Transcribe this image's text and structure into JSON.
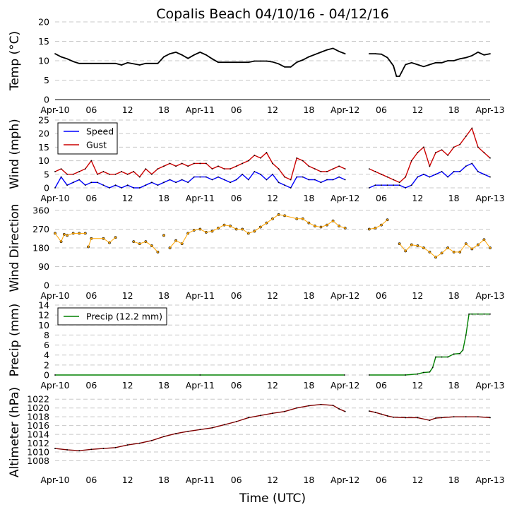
{
  "title": "Copalis Beach 04/10/16 - 04/12/16",
  "xlabel": "Time (UTC)",
  "x_tick_labels": [
    "Apr-10",
    "06",
    "12",
    "18",
    "Apr-11",
    "06",
    "12",
    "18",
    "Apr-12",
    "06",
    "12",
    "18",
    "Apr-13"
  ],
  "chart_data": [
    {
      "type": "line",
      "name": "temperature",
      "ylabel": "Temp ($^{\\circ}$C)",
      "ylabel_text": "Temp (°C)",
      "ylim": [
        0,
        20
      ],
      "yticks": [
        0,
        5,
        10,
        15,
        20
      ],
      "x_unit": "hours since Apr-10 00:00 UTC",
      "xlim": [
        0,
        72
      ],
      "color": "#000000",
      "series": [
        {
          "name": "Temp",
          "x": [
            0,
            1,
            2,
            3,
            4,
            6,
            8,
            10,
            11,
            12,
            14,
            15,
            16,
            17,
            18,
            19,
            20,
            21,
            22,
            23,
            24,
            25,
            26,
            27,
            30,
            32,
            33,
            34,
            35,
            36,
            37,
            38,
            39,
            40,
            41,
            42,
            43,
            44,
            45,
            46,
            47,
            48
          ],
          "values": [
            11.8,
            11.0,
            10.5,
            9.8,
            9.3,
            9.3,
            9.3,
            9.3,
            8.9,
            9.5,
            8.9,
            9.3,
            9.3,
            9.3,
            11.0,
            11.8,
            12.2,
            11.5,
            10.6,
            11.5,
            12.2,
            11.5,
            10.5,
            9.6,
            9.6,
            9.6,
            9.9,
            9.9,
            9.9,
            9.7,
            9.2,
            8.4,
            8.4,
            9.6,
            10.2,
            11.0,
            11.6,
            12.2,
            12.8,
            13.2,
            12.4,
            11.8
          ]
        },
        {
          "name": "Temp (after gap)",
          "x": [
            52,
            53,
            54,
            55,
            56,
            56.5,
            57,
            58,
            59,
            60,
            61,
            62,
            63,
            64,
            65,
            66,
            67,
            68,
            69,
            70,
            71,
            72
          ],
          "values": [
            11.8,
            11.8,
            11.7,
            10.8,
            8.7,
            6.0,
            6.0,
            9.0,
            9.5,
            9.0,
            8.5,
            9.0,
            9.5,
            9.5,
            10.0,
            10.0,
            10.5,
            10.8,
            11.3,
            12.2,
            11.5,
            11.8
          ]
        }
      ]
    },
    {
      "type": "line",
      "name": "wind",
      "ylabel": "Wind (mph)",
      "ylim": [
        0,
        25
      ],
      "yticks": [
        0,
        5,
        10,
        15,
        20,
        25
      ],
      "xlim": [
        0,
        72
      ],
      "legend": "top-left",
      "series": [
        {
          "name": "Speed",
          "color": "#0000ff",
          "x": [
            0,
            1,
            2,
            3,
            4,
            5,
            6,
            7,
            8,
            9,
            10,
            11,
            12,
            13,
            14,
            15,
            16,
            17,
            18,
            19,
            20,
            21,
            22,
            23,
            24,
            25,
            26,
            27,
            28,
            29,
            30,
            31,
            32,
            33,
            34,
            35,
            36,
            37,
            38,
            39,
            40,
            41,
            42,
            43,
            44,
            45,
            46,
            47,
            48
          ],
          "values": [
            0,
            4,
            1,
            2,
            3,
            1,
            2,
            2,
            1,
            0,
            1,
            0,
            1,
            0,
            0,
            1,
            2,
            1,
            2,
            3,
            2,
            3,
            2,
            4,
            4,
            4,
            3,
            4,
            3,
            2,
            3,
            5,
            3,
            6,
            5,
            3,
            5,
            2,
            1,
            0,
            4,
            4,
            3,
            3,
            2,
            3,
            3,
            4,
            3
          ]
        },
        {
          "name": "Speed (after gap)",
          "color": "#0000ff",
          "x": [
            52,
            53,
            54,
            55,
            56,
            57,
            58,
            59,
            60,
            61,
            62,
            63,
            64,
            65,
            66,
            67,
            68,
            69,
            70,
            71,
            72
          ],
          "values": [
            0,
            1,
            1,
            1,
            1,
            1,
            0,
            1,
            4,
            5,
            4,
            5,
            6,
            4,
            6,
            6,
            8,
            9,
            6,
            5,
            4
          ]
        },
        {
          "name": "Gust",
          "color": "#cc0000",
          "x": [
            0,
            1,
            2,
            3,
            4,
            5,
            6,
            7,
            8,
            9,
            10,
            11,
            12,
            13,
            14,
            15,
            16,
            17,
            18,
            19,
            20,
            21,
            22,
            23,
            24,
            25,
            26,
            27,
            28,
            29,
            30,
            31,
            32,
            33,
            34,
            35,
            36,
            37,
            38,
            39,
            40,
            41,
            42,
            43,
            44,
            45,
            46,
            47,
            48
          ],
          "values": [
            6,
            7,
            5,
            5,
            6,
            7,
            10,
            5,
            6,
            5,
            5,
            6,
            5,
            6,
            4,
            7,
            5,
            7,
            8,
            9,
            8,
            9,
            8,
            9,
            9,
            9,
            7,
            8,
            7,
            7,
            8,
            9,
            10,
            12,
            11,
            13,
            9,
            7,
            4,
            3,
            11,
            10,
            8,
            7,
            6,
            6,
            7,
            8,
            7
          ]
        },
        {
          "name": "Gust (after gap)",
          "color": "#cc0000",
          "x": [
            52,
            53,
            54,
            55,
            56,
            57,
            58,
            59,
            60,
            61,
            62,
            63,
            64,
            65,
            66,
            67,
            68,
            69,
            70,
            71,
            72
          ],
          "values": [
            7,
            6,
            5,
            4,
            3,
            2,
            4,
            10,
            13,
            15,
            8,
            13,
            14,
            12,
            15,
            16,
            19,
            22,
            15,
            13,
            11
          ]
        }
      ],
      "legend_entries": [
        "Speed",
        "Gust"
      ]
    },
    {
      "type": "scatter",
      "name": "wind_direction",
      "ylabel": "Wind Direction",
      "ylim": [
        0,
        360
      ],
      "yticks": [
        0,
        90,
        180,
        270,
        360
      ],
      "xlim": [
        0,
        72
      ],
      "color": "#ffa500",
      "series": [
        {
          "name": "Direction",
          "x": [
            0,
            1,
            1.5,
            2,
            3,
            4,
            5,
            5.5,
            6,
            8,
            9,
            10,
            13,
            14,
            15,
            16,
            17,
            18,
            19,
            20,
            21,
            22,
            23,
            24,
            25,
            26,
            27,
            28,
            29,
            30,
            31,
            32,
            33,
            34,
            35,
            36,
            37,
            38,
            40,
            41,
            42,
            43,
            44,
            45,
            46,
            47,
            48
          ],
          "values": [
            250,
            210,
            245,
            240,
            250,
            250,
            250,
            185,
            225,
            225,
            205,
            230,
            210,
            200,
            210,
            190,
            160,
            240,
            180,
            215,
            200,
            250,
            265,
            270,
            255,
            260,
            275,
            290,
            285,
            270,
            270,
            250,
            260,
            280,
            300,
            320,
            340,
            335,
            320,
            320,
            300,
            285,
            280,
            290,
            310,
            285,
            275
          ]
        },
        {
          "name": "Direction (after gap)",
          "x": [
            52,
            53,
            54,
            55,
            57,
            58,
            59,
            60,
            61,
            62,
            63,
            64,
            65,
            66,
            67,
            68,
            69,
            70,
            71,
            72
          ],
          "values": [
            270,
            275,
            290,
            315,
            200,
            165,
            195,
            190,
            180,
            160,
            135,
            155,
            180,
            160,
            160,
            200,
            175,
            195,
            220,
            180
          ]
        }
      ]
    },
    {
      "type": "line",
      "name": "precip",
      "ylabel": "Precip (mm)",
      "ylim": [
        0,
        14
      ],
      "yticks": [
        0,
        2,
        4,
        6,
        8,
        10,
        12,
        14
      ],
      "xlim": [
        0,
        72
      ],
      "color": "#008000",
      "legend": "top-left",
      "legend_entries": [
        "Precip (12.2 mm)"
      ],
      "series": [
        {
          "name": "Precip",
          "x": [
            0,
            24,
            47.9
          ],
          "values": [
            0,
            0,
            0
          ]
        },
        {
          "name": "Precip (after gap)",
          "x": [
            52,
            58,
            60,
            61,
            62,
            62.5,
            63,
            64,
            65,
            66,
            67,
            67.5,
            68,
            68.5,
            69,
            70,
            71,
            72
          ],
          "values": [
            0,
            0,
            0.2,
            0.5,
            0.6,
            1.5,
            3.6,
            3.6,
            3.6,
            4.2,
            4.3,
            5.0,
            8.0,
            12.2,
            12.2,
            12.2,
            12.2,
            12.2
          ]
        }
      ]
    },
    {
      "type": "line",
      "name": "altimeter",
      "ylabel": "Altimeter (hPa)",
      "ylim": [
        1006,
        1023
      ],
      "yticks": [
        1008,
        1010,
        1012,
        1014,
        1016,
        1018,
        1020,
        1022
      ],
      "xlim": [
        0,
        72
      ],
      "color": "#800000",
      "series": [
        {
          "name": "Altimeter",
          "x": [
            0,
            2,
            4,
            6,
            8,
            10,
            12,
            14,
            16,
            18,
            20,
            22,
            24,
            26,
            28,
            30,
            32,
            34,
            36,
            38,
            40,
            42,
            44,
            46,
            47,
            48
          ],
          "values": [
            1010.8,
            1010.5,
            1010.3,
            1010.6,
            1010.8,
            1011.0,
            1011.6,
            1012.0,
            1012.6,
            1013.5,
            1014.2,
            1014.7,
            1015.1,
            1015.5,
            1016.2,
            1016.9,
            1017.8,
            1018.3,
            1018.8,
            1019.2,
            1020.0,
            1020.5,
            1020.8,
            1020.6,
            1019.8,
            1019.2
          ]
        },
        {
          "name": "Altimeter (after gap)",
          "x": [
            52,
            53,
            54,
            55,
            56,
            58,
            60,
            62,
            63,
            64,
            66,
            68,
            70,
            72
          ],
          "values": [
            1019.3,
            1019.0,
            1018.6,
            1018.2,
            1017.9,
            1017.8,
            1017.8,
            1017.2,
            1017.7,
            1017.8,
            1018.0,
            1018.0,
            1018.0,
            1017.8
          ]
        }
      ]
    }
  ]
}
